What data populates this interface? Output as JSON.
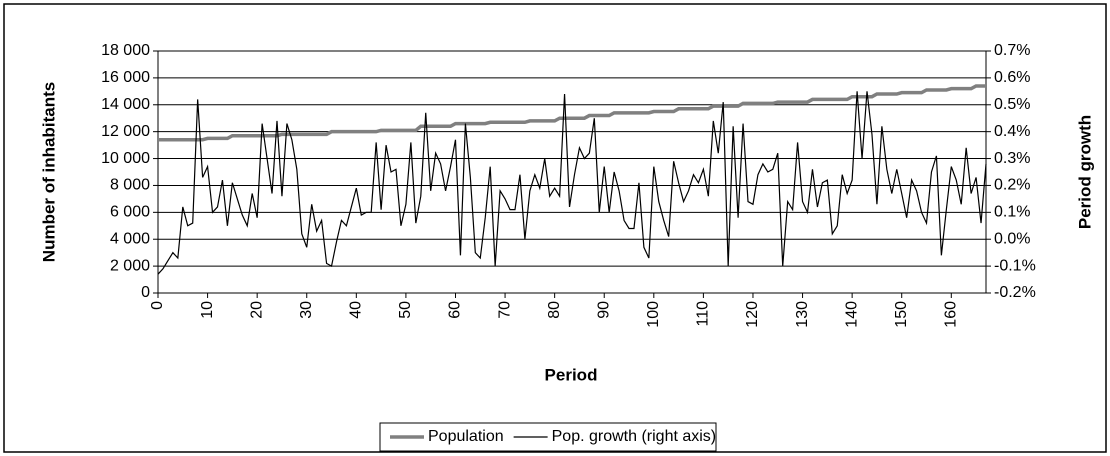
{
  "chart_data": {
    "type": "line",
    "xlabel": "Period",
    "ylabel": "Number of inhabitants",
    "y2label": "Period growth",
    "x": [
      0,
      1,
      2,
      3,
      4,
      5,
      6,
      7,
      8,
      9,
      10,
      11,
      12,
      13,
      14,
      15,
      16,
      17,
      18,
      19,
      20,
      21,
      22,
      23,
      24,
      25,
      26,
      27,
      28,
      29,
      30,
      31,
      32,
      33,
      34,
      35,
      36,
      37,
      38,
      39,
      40,
      41,
      42,
      43,
      44,
      45,
      46,
      47,
      48,
      49,
      50,
      51,
      52,
      53,
      54,
      55,
      56,
      57,
      58,
      59,
      60,
      61,
      62,
      63,
      64,
      65,
      66,
      67,
      68,
      69,
      70,
      71,
      72,
      73,
      74,
      75,
      76,
      77,
      78,
      79,
      80,
      81,
      82,
      83,
      84,
      85,
      86,
      87,
      88,
      89,
      90,
      91,
      92,
      93,
      94,
      95,
      96,
      97,
      98,
      99,
      100,
      101,
      102,
      103,
      104,
      105,
      106,
      107,
      108,
      109,
      110,
      111,
      112,
      113,
      114,
      115,
      116,
      117,
      118,
      119,
      120,
      121,
      122,
      123,
      124,
      125,
      126,
      127,
      128,
      129,
      130,
      131,
      132,
      133,
      134,
      135,
      136,
      137,
      138,
      139,
      140,
      141,
      142,
      143,
      144,
      145,
      146,
      147,
      148,
      149,
      150,
      151,
      152,
      153,
      154,
      155,
      156,
      157,
      158,
      159,
      160,
      161,
      162,
      163,
      164,
      165,
      166,
      167
    ],
    "series": [
      {
        "name": "Population",
        "color": "#808080",
        "values": [
          11400,
          11400,
          11400,
          11400,
          11400,
          11400,
          11400,
          11400,
          11400,
          11400,
          11500,
          11500,
          11500,
          11500,
          11500,
          11700,
          11700,
          11700,
          11700,
          11700,
          11700,
          11700,
          11700,
          11700,
          11700,
          11800,
          11800,
          11800,
          11800,
          11800,
          11800,
          11800,
          11800,
          11800,
          11800,
          12000,
          12000,
          12000,
          12000,
          12000,
          12000,
          12000,
          12000,
          12000,
          12000,
          12100,
          12100,
          12100,
          12100,
          12100,
          12100,
          12100,
          12100,
          12400,
          12400,
          12400,
          12400,
          12400,
          12400,
          12400,
          12600,
          12600,
          12600,
          12600,
          12600,
          12600,
          12600,
          12700,
          12700,
          12700,
          12700,
          12700,
          12700,
          12700,
          12700,
          12800,
          12800,
          12800,
          12800,
          12800,
          12800,
          13000,
          13000,
          13000,
          13000,
          13000,
          13000,
          13200,
          13200,
          13200,
          13200,
          13200,
          13400,
          13400,
          13400,
          13400,
          13400,
          13400,
          13400,
          13400,
          13500,
          13500,
          13500,
          13500,
          13500,
          13700,
          13700,
          13700,
          13700,
          13700,
          13700,
          13700,
          13900,
          13900,
          13900,
          13900,
          13900,
          13900,
          14100,
          14100,
          14100,
          14100,
          14100,
          14100,
          14100,
          14200,
          14200,
          14200,
          14200,
          14200,
          14200,
          14200,
          14400,
          14400,
          14400,
          14400,
          14400,
          14400,
          14400,
          14400,
          14600,
          14600,
          14600,
          14600,
          14600,
          14800,
          14800,
          14800,
          14800,
          14800,
          14900,
          14900,
          14900,
          14900,
          14900,
          15100,
          15100,
          15100,
          15100,
          15100,
          15200,
          15200,
          15200,
          15200,
          15200,
          15400,
          15400,
          15400
        ]
      },
      {
        "name": "Pop. growth (right axis)",
        "color": "#000000",
        "axis": "y2",
        "values": [
          -0.13,
          -0.11,
          -0.08,
          -0.05,
          -0.07,
          0.12,
          0.05,
          0.06,
          0.52,
          0.23,
          0.27,
          0.1,
          0.12,
          0.22,
          0.05,
          0.21,
          0.15,
          0.09,
          0.05,
          0.17,
          0.08,
          0.43,
          0.3,
          0.17,
          0.44,
          0.16,
          0.43,
          0.37,
          0.26,
          0.02,
          -0.03,
          0.13,
          0.03,
          0.07,
          -0.09,
          -0.1,
          -0.01,
          0.07,
          0.05,
          0.12,
          0.19,
          0.09,
          0.1,
          0.1,
          0.36,
          0.11,
          0.35,
          0.25,
          0.26,
          0.05,
          0.13,
          0.36,
          0.06,
          0.16,
          0.47,
          0.18,
          0.32,
          0.28,
          0.18,
          0.27,
          0.37,
          -0.06,
          0.43,
          0.23,
          -0.05,
          -0.07,
          0.08,
          0.27,
          -0.1,
          0.18,
          0.15,
          0.11,
          0.11,
          0.24,
          0.0,
          0.18,
          0.24,
          0.19,
          0.3,
          0.16,
          0.19,
          0.16,
          0.54,
          0.12,
          0.24,
          0.34,
          0.3,
          0.32,
          0.45,
          0.1,
          0.27,
          0.1,
          0.25,
          0.18,
          0.07,
          0.04,
          0.04,
          0.21,
          -0.03,
          -0.07,
          0.27,
          0.14,
          0.07,
          0.01,
          0.29,
          0.21,
          0.14,
          0.18,
          0.24,
          0.21,
          0.26,
          0.16,
          0.44,
          0.32,
          0.51,
          -0.1,
          0.42,
          0.08,
          0.43,
          0.14,
          0.13,
          0.24,
          0.28,
          0.25,
          0.26,
          0.32,
          -0.1,
          0.14,
          0.11,
          0.36,
          0.14,
          0.1,
          0.26,
          0.12,
          0.21,
          0.22,
          0.02,
          0.05,
          0.24,
          0.17,
          0.22,
          0.55,
          0.3,
          0.55,
          0.39,
          0.13,
          0.42,
          0.26,
          0.17,
          0.26,
          0.17,
          0.08,
          0.22,
          0.18,
          0.1,
          0.06,
          0.25,
          0.31,
          -0.06,
          0.11,
          0.27,
          0.22,
          0.13,
          0.34,
          0.17,
          0.23,
          0.06,
          0.28
        ]
      }
    ],
    "xlim": [
      0,
      167
    ],
    "xticks": [
      0,
      10,
      20,
      30,
      40,
      50,
      60,
      70,
      80,
      90,
      100,
      110,
      120,
      130,
      140,
      150,
      160
    ],
    "ylim": [
      0,
      18000
    ],
    "yticks": [
      0,
      {
        "value": 2000,
        "label": "2 000"
      },
      {
        "value": 4000,
        "label": "4 000"
      },
      {
        "value": 6000,
        "label": "6 000"
      },
      {
        "value": 8000,
        "label": "8 000"
      },
      {
        "value": 10000,
        "label": "10 000"
      },
      {
        "value": 12000,
        "label": "12 000"
      },
      {
        "value": 14000,
        "label": "14 000"
      },
      {
        "value": 16000,
        "label": "16 000"
      },
      {
        "value": 18000,
        "label": "18 000"
      }
    ],
    "y2lim": [
      -0.2,
      0.7
    ],
    "y2ticks": [
      {
        "value": -0.2,
        "label": "-0.2%"
      },
      {
        "value": -0.1,
        "label": "-0.1%"
      },
      {
        "value": 0.0,
        "label": "0.0%"
      },
      {
        "value": 0.1,
        "label": "0.1%"
      },
      {
        "value": 0.2,
        "label": "0.2%"
      },
      {
        "value": 0.3,
        "label": "0.3%"
      },
      {
        "value": 0.4,
        "label": "0.4%"
      },
      {
        "value": 0.5,
        "label": "0.5%"
      },
      {
        "value": 0.6,
        "label": "0.6%"
      },
      {
        "value": 0.7,
        "label": "0.7%"
      }
    ],
    "grid": true,
    "legend": "bottom"
  }
}
